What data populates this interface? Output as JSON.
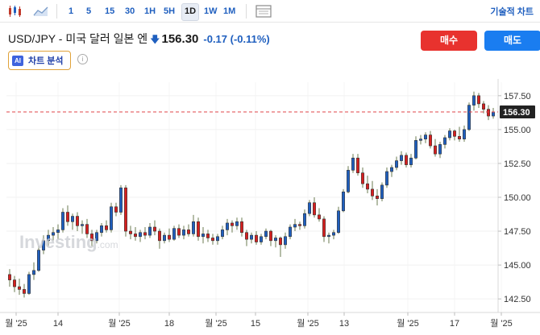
{
  "toolbar": {
    "timeframes": [
      "1",
      "5",
      "15",
      "30",
      "1H",
      "5H",
      "1D",
      "1W",
      "1M"
    ],
    "active_timeframe": "1D",
    "right_label": "기술적 차트 "
  },
  "symbol": {
    "name": "USD/JPY - 미국 달러 일본 엔",
    "direction_icon": "arrow-down-icon",
    "price": "156.30",
    "change": "-0.17 (-0.11%)"
  },
  "actions": {
    "buy_label": "매수",
    "sell_label": "매도",
    "ai_badge": "AI",
    "ai_label": "차트 분석"
  },
  "watermark": {
    "brand": "Investing",
    "suffix": ".com"
  },
  "colors": {
    "up": "#1f5fbf",
    "down": "#d61f1f",
    "accent_buy": "#e8322e",
    "accent_sell": "#1a7df0"
  },
  "chart_data": {
    "type": "candlestick",
    "ylim": [
      141.5,
      158.5
    ],
    "yticks": [
      "142.50",
      "145.00",
      "147.50",
      "150.00",
      "152.50",
      "155.00",
      "157.50"
    ],
    "xticks": [
      "월 '25",
      "14",
      "월 '25",
      "18",
      "월 '25",
      "15",
      "월 '25",
      "13",
      "월 '25",
      "17",
      "월 '25"
    ],
    "last_price_label": "156.30",
    "last_price": 156.3,
    "ohlc": [
      [
        144.3,
        144.7,
        143.4,
        143.9
      ],
      [
        143.9,
        144.2,
        143.0,
        143.4
      ],
      [
        143.4,
        144.0,
        142.8,
        143.2
      ],
      [
        143.2,
        143.6,
        142.6,
        142.9
      ],
      [
        142.9,
        144.5,
        142.8,
        144.3
      ],
      [
        144.3,
        145.2,
        143.9,
        144.6
      ],
      [
        144.6,
        146.4,
        144.5,
        146.1
      ],
      [
        146.1,
        147.2,
        145.8,
        146.8
      ],
      [
        146.8,
        147.6,
        146.4,
        147.2
      ],
      [
        147.2,
        147.8,
        146.8,
        147.4
      ],
      [
        147.4,
        148.0,
        146.9,
        147.6
      ],
      [
        147.6,
        149.2,
        147.4,
        148.9
      ],
      [
        148.9,
        149.4,
        147.9,
        148.2
      ],
      [
        148.2,
        148.8,
        147.6,
        148.6
      ],
      [
        148.6,
        148.9,
        147.5,
        147.9
      ],
      [
        147.9,
        148.3,
        147.3,
        148.0
      ],
      [
        148.0,
        148.4,
        147.0,
        147.3
      ],
      [
        147.3,
        147.6,
        146.4,
        146.8
      ],
      [
        146.8,
        147.6,
        146.6,
        147.4
      ],
      [
        147.4,
        148.1,
        147.1,
        147.9
      ],
      [
        147.9,
        148.3,
        147.4,
        147.6
      ],
      [
        147.6,
        149.6,
        147.4,
        149.3
      ],
      [
        149.3,
        149.6,
        148.6,
        148.9
      ],
      [
        148.9,
        150.9,
        148.7,
        150.7
      ],
      [
        150.7,
        150.9,
        147.1,
        147.5
      ],
      [
        147.5,
        147.9,
        146.9,
        147.3
      ],
      [
        147.3,
        147.8,
        146.8,
        147.1
      ],
      [
        147.1,
        147.6,
        146.7,
        147.4
      ],
      [
        147.4,
        147.8,
        146.9,
        147.2
      ],
      [
        147.2,
        148.1,
        147.0,
        147.8
      ],
      [
        147.8,
        148.3,
        147.2,
        147.5
      ],
      [
        147.5,
        147.7,
        146.2,
        146.8
      ],
      [
        146.8,
        147.4,
        146.6,
        147.2
      ],
      [
        147.2,
        147.7,
        146.7,
        146.9
      ],
      [
        146.9,
        147.9,
        146.8,
        147.7
      ],
      [
        147.7,
        148.0,
        147.0,
        147.2
      ],
      [
        147.2,
        147.9,
        146.9,
        147.6
      ],
      [
        147.6,
        148.0,
        147.1,
        147.3
      ],
      [
        147.3,
        148.7,
        147.1,
        148.2
      ],
      [
        148.2,
        148.5,
        146.8,
        147.1
      ],
      [
        147.1,
        147.8,
        146.6,
        147.3
      ],
      [
        147.3,
        147.6,
        146.7,
        147.0
      ],
      [
        147.0,
        147.3,
        146.5,
        146.8
      ],
      [
        146.8,
        147.3,
        146.5,
        147.1
      ],
      [
        147.1,
        147.9,
        146.9,
        147.6
      ],
      [
        147.6,
        148.4,
        147.2,
        148.1
      ],
      [
        148.1,
        148.3,
        147.4,
        147.9
      ],
      [
        147.9,
        148.5,
        147.6,
        148.2
      ],
      [
        148.2,
        148.5,
        147.1,
        147.4
      ],
      [
        147.4,
        147.6,
        146.4,
        146.9
      ],
      [
        146.9,
        147.4,
        146.6,
        147.2
      ],
      [
        147.2,
        147.5,
        146.5,
        146.7
      ],
      [
        146.7,
        147.3,
        146.5,
        147.1
      ],
      [
        147.1,
        147.7,
        146.9,
        147.5
      ],
      [
        147.5,
        147.6,
        146.4,
        146.8
      ],
      [
        146.8,
        147.2,
        146.3,
        147.0
      ],
      [
        147.0,
        147.1,
        145.6,
        146.5
      ],
      [
        146.5,
        147.4,
        146.2,
        147.1
      ],
      [
        147.1,
        148.0,
        146.9,
        147.8
      ],
      [
        147.8,
        148.4,
        147.5,
        148.0
      ],
      [
        148.0,
        148.2,
        147.6,
        147.9
      ],
      [
        147.9,
        149.1,
        147.7,
        148.8
      ],
      [
        148.8,
        149.8,
        148.6,
        149.6
      ],
      [
        149.6,
        150.0,
        148.5,
        148.7
      ],
      [
        148.7,
        149.2,
        148.2,
        148.4
      ],
      [
        148.4,
        148.6,
        146.7,
        147.1
      ],
      [
        147.1,
        147.4,
        146.6,
        147.2
      ],
      [
        147.2,
        147.6,
        146.9,
        147.4
      ],
      [
        147.4,
        149.3,
        147.3,
        149.0
      ],
      [
        149.0,
        150.6,
        148.9,
        150.4
      ],
      [
        150.4,
        152.3,
        150.3,
        152.0
      ],
      [
        152.0,
        153.2,
        151.8,
        152.9
      ],
      [
        152.9,
        153.2,
        151.6,
        151.8
      ],
      [
        151.8,
        152.2,
        150.7,
        151.0
      ],
      [
        151.0,
        151.6,
        150.3,
        150.6
      ],
      [
        150.6,
        151.2,
        149.8,
        150.1
      ],
      [
        150.1,
        150.6,
        149.4,
        149.9
      ],
      [
        149.9,
        151.1,
        149.7,
        150.9
      ],
      [
        150.9,
        152.2,
        150.7,
        151.9
      ],
      [
        151.9,
        152.4,
        151.5,
        152.2
      ],
      [
        152.2,
        153.0,
        152.0,
        152.7
      ],
      [
        152.7,
        153.4,
        152.4,
        153.1
      ],
      [
        153.1,
        153.3,
        152.2,
        152.4
      ],
      [
        152.4,
        153.2,
        152.2,
        152.9
      ],
      [
        152.9,
        154.5,
        152.8,
        154.2
      ],
      [
        154.2,
        154.6,
        153.9,
        154.3
      ],
      [
        154.3,
        154.8,
        154.0,
        154.6
      ],
      [
        154.6,
        154.9,
        153.6,
        153.8
      ],
      [
        153.8,
        154.3,
        153.0,
        153.2
      ],
      [
        153.2,
        154.1,
        152.9,
        153.9
      ],
      [
        153.9,
        154.6,
        153.6,
        154.4
      ],
      [
        154.4,
        155.1,
        154.2,
        154.9
      ],
      [
        154.9,
        155.0,
        154.2,
        154.5
      ],
      [
        154.5,
        155.2,
        154.1,
        154.3
      ],
      [
        154.3,
        155.3,
        154.1,
        155.0
      ],
      [
        155.0,
        157.0,
        154.9,
        156.8
      ],
      [
        156.8,
        157.8,
        156.4,
        157.5
      ],
      [
        157.5,
        157.7,
        156.6,
        156.9
      ],
      [
        156.9,
        157.1,
        156.2,
        156.5
      ],
      [
        156.5,
        156.8,
        155.7,
        156.0
      ],
      [
        156.0,
        156.6,
        155.8,
        156.3
      ]
    ]
  }
}
